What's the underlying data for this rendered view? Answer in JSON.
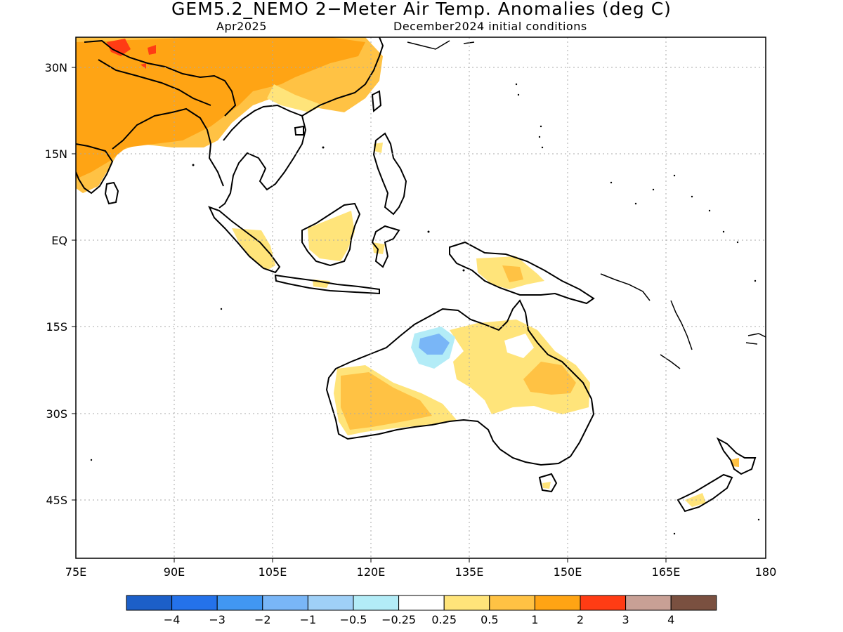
{
  "title": "GEM5.2_NEMO 2−Meter Air Temp. Anomalies (deg C)",
  "subtitle_left": "Apr2025",
  "subtitle_right": "December2024 initial conditions",
  "map": {
    "region": "Indian Ocean / Maritime Continent / Australia / West Pacific",
    "lon_range": [
      75,
      180
    ],
    "lat_range": [
      -48,
      35
    ],
    "grid": true,
    "lon_ticks": [
      "75E",
      "90E",
      "105E",
      "120E",
      "135E",
      "150E",
      "165E",
      "180"
    ],
    "lat_ticks": [
      "30N",
      "15N",
      "EQ",
      "15S",
      "30S",
      "45S"
    ]
  },
  "legend": {
    "colors": [
      "#1c5fc8",
      "#2472ea",
      "#4197f2",
      "#79b6f7",
      "#9fd0f7",
      "#b3ecf7",
      "#ffffff",
      "#ffe47a",
      "#ffc244",
      "#ffa414",
      "#ff3c14",
      "#c8a095",
      "#7a5040"
    ],
    "labels": [
      "−4",
      "−3",
      "−2",
      "−1",
      "−0.5",
      "−0.25",
      "0.25",
      "0.5",
      "1",
      "2",
      "3",
      "4"
    ]
  }
}
